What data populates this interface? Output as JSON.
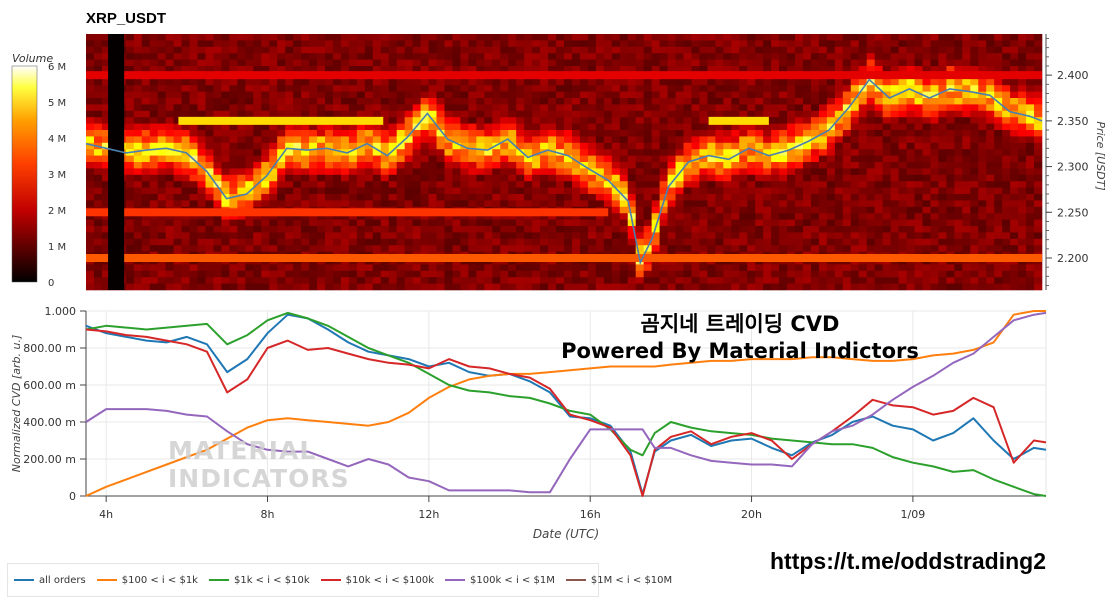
{
  "title": "XRP_USDT",
  "overlay": {
    "line1": "곰지네 트레이딩 CVD",
    "line2": "Powered By Material Indictors"
  },
  "url": "https://t.me/oddstrading2",
  "watermark": {
    "line1": "MATERIAL",
    "line2": "INDICATORS"
  },
  "colors": {
    "all_orders": "#1f77b4",
    "b100_1k": "#ff7f0e",
    "b1k_10k": "#2ca02c",
    "b10k_100k": "#d62728",
    "b100k_1m": "#9467bd",
    "b1m_10m": "#8c564b",
    "price_line": "#4a7fb0"
  },
  "chart_data": [
    {
      "type": "heatmap",
      "title": "XRP_USDT",
      "colorbar": {
        "label": "Volume",
        "ticks": [
          "6 M",
          "5 M",
          "4 M",
          "3 M",
          "2 M",
          "1 M",
          "0"
        ],
        "range": [
          0,
          6000000
        ],
        "colormap": "hot"
      },
      "ylabel": "Price [USDT]",
      "y_ticks": [
        "2.400",
        "2.350",
        "2.300",
        "2.250",
        "2.200"
      ],
      "ylim": [
        2.165,
        2.445
      ],
      "price_series": {
        "x_hours": [
          3.5,
          4.0,
          4.5,
          5.0,
          5.5,
          6.0,
          6.5,
          7.0,
          7.5,
          8.0,
          8.5,
          9.0,
          9.5,
          10.0,
          10.5,
          11.0,
          11.5,
          12.0,
          12.5,
          13.0,
          13.5,
          14.0,
          14.5,
          15.0,
          15.5,
          16.0,
          16.5,
          17.0,
          17.3,
          17.6,
          18.0,
          18.5,
          19.0,
          19.5,
          20.0,
          20.5,
          21.0,
          21.5,
          22.0,
          22.5,
          23.0,
          23.5,
          24.0,
          24.5,
          25.0,
          25.5,
          26.0,
          26.5,
          27.0,
          27.3
        ],
        "y": [
          2.325,
          2.32,
          2.315,
          2.318,
          2.32,
          2.315,
          2.295,
          2.265,
          2.27,
          2.29,
          2.32,
          2.318,
          2.32,
          2.315,
          2.325,
          2.312,
          2.332,
          2.358,
          2.33,
          2.32,
          2.318,
          2.33,
          2.31,
          2.318,
          2.312,
          2.298,
          2.285,
          2.262,
          2.195,
          2.222,
          2.278,
          2.305,
          2.312,
          2.308,
          2.32,
          2.312,
          2.318,
          2.328,
          2.34,
          2.365,
          2.395,
          2.375,
          2.385,
          2.375,
          2.385,
          2.382,
          2.378,
          2.36,
          2.355,
          2.35
        ]
      },
      "heat_bands": [
        {
          "price": 2.35,
          "from_hour": 5.8,
          "to_hour": 10.9,
          "level": 0.62
        },
        {
          "price": 2.35,
          "from_hour": 19.0,
          "to_hour": 20.5,
          "level": 0.62
        },
        {
          "price": 2.2,
          "from_hour": 3.5,
          "to_hour": 27.3,
          "level": 0.45
        },
        {
          "price": 2.25,
          "from_hour": 3.5,
          "to_hour": 16.5,
          "level": 0.4
        },
        {
          "price": 2.4,
          "from_hour": 3.5,
          "to_hour": 27.3,
          "level": 0.3
        }
      ]
    },
    {
      "type": "line",
      "xlabel": "Date (UTC)",
      "ylabel": "Normalized CVD [arb. u.]",
      "ylim": [
        0,
        1
      ],
      "xlim": [
        3.5,
        27.3
      ],
      "x_ticks": [
        {
          "hour": 4,
          "label": "4h"
        },
        {
          "hour": 8,
          "label": "8h"
        },
        {
          "hour": 12,
          "label": "12h"
        },
        {
          "hour": 16,
          "label": "16h"
        },
        {
          "hour": 20,
          "label": "20h"
        },
        {
          "hour": 24,
          "label": "1/09"
        }
      ],
      "y_ticks": [
        {
          "v": 1.0,
          "label": "1.000"
        },
        {
          "v": 0.8,
          "label": "800.00 m"
        },
        {
          "v": 0.6,
          "label": "600.00 m"
        },
        {
          "v": 0.4,
          "label": "400.00 m"
        },
        {
          "v": 0.2,
          "label": "200.00 m"
        },
        {
          "v": 0.0,
          "label": "0"
        }
      ],
      "x": [
        3.5,
        4.0,
        4.5,
        5.0,
        5.5,
        6.0,
        6.5,
        7.0,
        7.5,
        8.0,
        8.5,
        9.0,
        9.5,
        10.0,
        10.5,
        11.0,
        11.5,
        12.0,
        12.5,
        13.0,
        13.5,
        14.0,
        14.5,
        15.0,
        15.5,
        16.0,
        16.5,
        17.0,
        17.3,
        17.6,
        18.0,
        18.5,
        19.0,
        19.5,
        20.0,
        20.5,
        21.0,
        21.5,
        22.0,
        22.5,
        23.0,
        23.5,
        24.0,
        24.5,
        25.0,
        25.5,
        26.0,
        26.5,
        27.0,
        27.3
      ],
      "series": [
        {
          "name": "all orders",
          "color_key": "all_orders",
          "values": [
            0.92,
            0.88,
            0.86,
            0.84,
            0.83,
            0.86,
            0.82,
            0.67,
            0.74,
            0.88,
            0.98,
            0.96,
            0.9,
            0.83,
            0.78,
            0.76,
            0.74,
            0.7,
            0.72,
            0.67,
            0.65,
            0.66,
            0.62,
            0.56,
            0.43,
            0.42,
            0.38,
            0.24,
            0.01,
            0.24,
            0.3,
            0.33,
            0.27,
            0.3,
            0.31,
            0.26,
            0.22,
            0.29,
            0.33,
            0.4,
            0.43,
            0.38,
            0.36,
            0.3,
            0.34,
            0.42,
            0.3,
            0.2,
            0.26,
            0.25
          ]
        },
        {
          "name": "$100 < i < $1k",
          "color_key": "b100_1k",
          "values": [
            0.0,
            0.05,
            0.09,
            0.13,
            0.17,
            0.21,
            0.25,
            0.31,
            0.37,
            0.41,
            0.42,
            0.41,
            0.4,
            0.39,
            0.38,
            0.4,
            0.45,
            0.53,
            0.59,
            0.63,
            0.65,
            0.66,
            0.66,
            0.67,
            0.68,
            0.69,
            0.7,
            0.7,
            0.7,
            0.7,
            0.71,
            0.72,
            0.73,
            0.73,
            0.74,
            0.74,
            0.74,
            0.75,
            0.75,
            0.74,
            0.73,
            0.73,
            0.74,
            0.76,
            0.77,
            0.79,
            0.83,
            0.98,
            1.0,
            1.0
          ]
        },
        {
          "name": "$1k < i < $10k",
          "color_key": "b1k_10k",
          "values": [
            0.9,
            0.92,
            0.91,
            0.9,
            0.91,
            0.92,
            0.93,
            0.82,
            0.87,
            0.95,
            0.99,
            0.96,
            0.92,
            0.86,
            0.8,
            0.76,
            0.72,
            0.66,
            0.6,
            0.57,
            0.56,
            0.54,
            0.53,
            0.5,
            0.46,
            0.44,
            0.36,
            0.25,
            0.22,
            0.34,
            0.4,
            0.37,
            0.35,
            0.34,
            0.33,
            0.31,
            0.3,
            0.29,
            0.28,
            0.28,
            0.26,
            0.21,
            0.18,
            0.16,
            0.13,
            0.14,
            0.09,
            0.05,
            0.01,
            0.0
          ]
        },
        {
          "name": "$10k < i < $100k",
          "color_key": "b10k_100k",
          "values": [
            0.9,
            0.89,
            0.87,
            0.86,
            0.84,
            0.82,
            0.78,
            0.56,
            0.63,
            0.8,
            0.84,
            0.79,
            0.8,
            0.77,
            0.74,
            0.72,
            0.71,
            0.69,
            0.74,
            0.7,
            0.69,
            0.66,
            0.64,
            0.58,
            0.44,
            0.41,
            0.37,
            0.22,
            0.0,
            0.25,
            0.32,
            0.35,
            0.28,
            0.32,
            0.34,
            0.3,
            0.2,
            0.28,
            0.35,
            0.43,
            0.52,
            0.49,
            0.48,
            0.44,
            0.46,
            0.53,
            0.48,
            0.18,
            0.3,
            0.29
          ]
        },
        {
          "name": "$100k < i < $1M",
          "color_key": "b100k_1m",
          "values": [
            0.4,
            0.47,
            0.47,
            0.47,
            0.46,
            0.44,
            0.43,
            0.35,
            0.28,
            0.25,
            0.24,
            0.24,
            0.2,
            0.16,
            0.2,
            0.17,
            0.1,
            0.08,
            0.03,
            0.03,
            0.03,
            0.03,
            0.02,
            0.02,
            0.2,
            0.36,
            0.36,
            0.36,
            0.36,
            0.26,
            0.26,
            0.22,
            0.19,
            0.18,
            0.17,
            0.17,
            0.16,
            0.28,
            0.35,
            0.38,
            0.44,
            0.52,
            0.59,
            0.65,
            0.72,
            0.77,
            0.86,
            0.95,
            0.98,
            0.99
          ]
        }
      ],
      "legend_position": "bottom-left"
    }
  ],
  "legend": [
    {
      "label": "all orders",
      "color_key": "all_orders"
    },
    {
      "label": "$100 < i < $1k",
      "color_key": "b100_1k"
    },
    {
      "label": "$1k < i < $10k",
      "color_key": "b1k_10k"
    },
    {
      "label": "$10k < i < $100k",
      "color_key": "b10k_100k"
    },
    {
      "label": "$100k < i < $1M",
      "color_key": "b100k_1m"
    },
    {
      "label": "$1M < i < $10M",
      "color_key": "b1m_10m"
    }
  ]
}
